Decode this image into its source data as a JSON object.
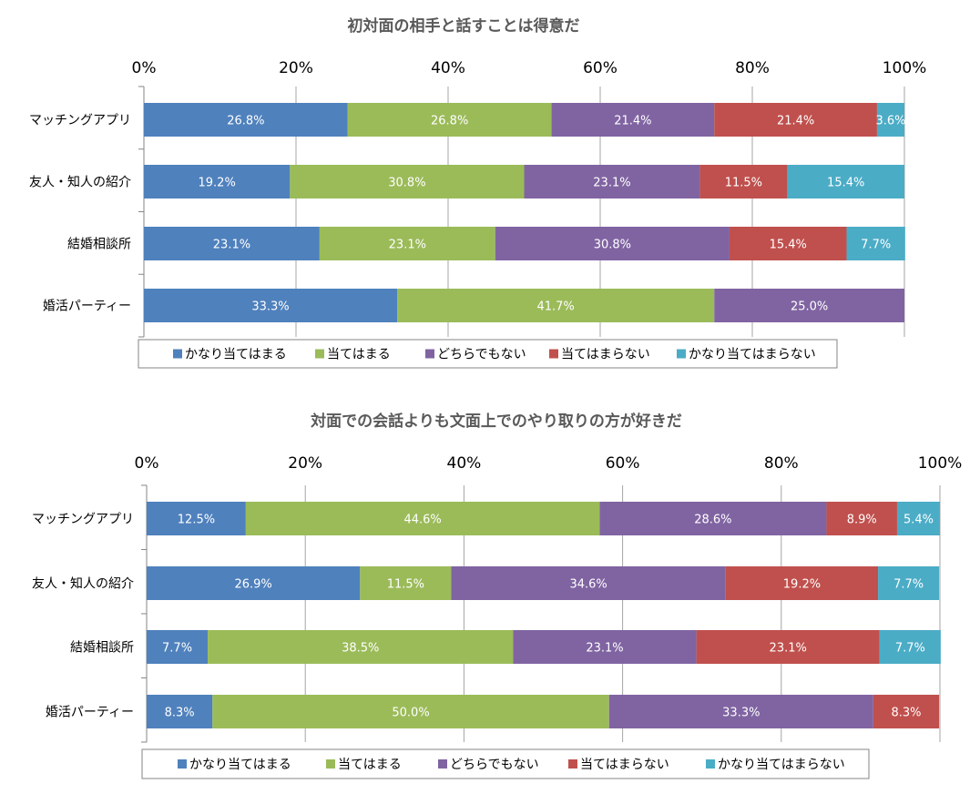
{
  "chart_data": [
    {
      "type": "bar",
      "orientation": "horizontal",
      "stacked": "percent",
      "title": "初対面の相手と話すことは得意だ",
      "categories": [
        "マッチングアプリ",
        "友人・知人の紹介",
        "結婚相談所",
        "婚活パーティー"
      ],
      "xlim": [
        0,
        100
      ],
      "xticks": [
        "0%",
        "20%",
        "40%",
        "60%",
        "80%",
        "100%"
      ],
      "grid": true,
      "legend_placement": "bottom",
      "series": [
        {
          "name": "かなり当てはまる",
          "color": "#4F81BD",
          "values": [
            26.8,
            19.2,
            23.1,
            33.3
          ]
        },
        {
          "name": "当てはまる",
          "color": "#9BBB59",
          "values": [
            26.8,
            30.8,
            23.1,
            41.7
          ]
        },
        {
          "name": "どちらでもない",
          "color": "#8064A2",
          "values": [
            21.4,
            23.1,
            30.8,
            25.0
          ]
        },
        {
          "name": "当てはまらない",
          "color": "#C0504D",
          "values": [
            21.4,
            11.5,
            15.4,
            0
          ]
        },
        {
          "name": "かなり当てはまらない",
          "color": "#4BACC6",
          "values": [
            3.6,
            15.4,
            7.7,
            0
          ]
        }
      ]
    },
    {
      "type": "bar",
      "orientation": "horizontal",
      "stacked": "percent",
      "title": "対面での会話よりも文面上でのやり取りの方が好きだ",
      "categories": [
        "マッチングアプリ",
        "友人・知人の紹介",
        "結婚相談所",
        "婚活パーティー"
      ],
      "xlim": [
        0,
        100
      ],
      "xticks": [
        "0%",
        "20%",
        "40%",
        "60%",
        "80%",
        "100%"
      ],
      "grid": true,
      "legend_placement": "bottom",
      "series": [
        {
          "name": "かなり当てはまる",
          "color": "#4F81BD",
          "values": [
            12.5,
            26.9,
            7.7,
            8.3
          ]
        },
        {
          "name": "当てはまる",
          "color": "#9BBB59",
          "values": [
            44.6,
            11.5,
            38.5,
            50.0
          ]
        },
        {
          "name": "どちらでもない",
          "color": "#8064A2",
          "values": [
            28.6,
            34.6,
            23.1,
            33.3
          ]
        },
        {
          "name": "当てはまらない",
          "color": "#C0504D",
          "values": [
            8.9,
            19.2,
            23.1,
            8.3
          ]
        },
        {
          "name": "かなり当てはまらない",
          "color": "#4BACC6",
          "values": [
            5.4,
            7.7,
            7.7,
            0
          ]
        }
      ]
    }
  ]
}
